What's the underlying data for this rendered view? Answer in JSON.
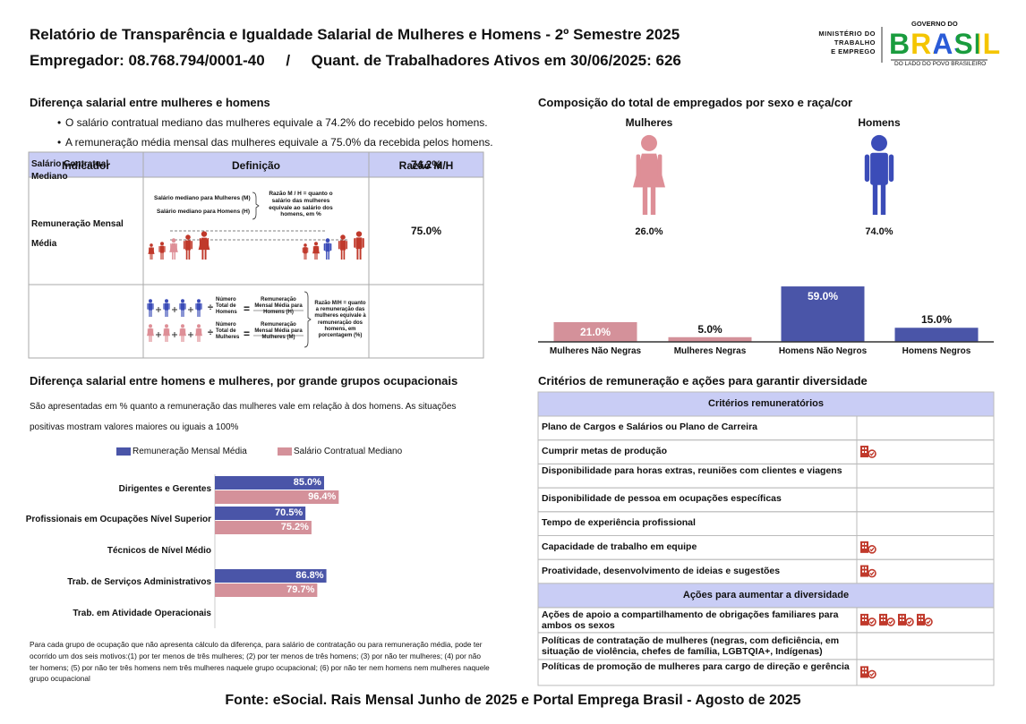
{
  "header": {
    "title": "Relatório de Transparência e Igualdade Salarial de Mulheres e Homens - 2º Semestre 2025",
    "subtitle": "Empregador: 08.768.794/0001-40     /     Quant. de Trabalhadores Ativos em 30/06/2025: 626"
  },
  "logos": {
    "ministry": [
      "MINISTÉRIO DO",
      "TRABALHO",
      "E EMPREGO"
    ],
    "government": {
      "top": "GOVERNO DO",
      "name": "BRASIL",
      "slogan": "DO LADO DO POVO BRASILEIRO"
    }
  },
  "salary_gap": {
    "title": "Diferença salarial entre mulheres e homens",
    "bullets": [
      "O salário contratual mediano das mulheres equivale a 74.2% do recebido pelos homens.",
      "A remuneração média mensal das mulheres equivale a 75.0% da recebida pelos homens."
    ],
    "table": {
      "header": [
        "Indicador",
        "Definição",
        "Razão M/H"
      ],
      "symbols": {
        "divide": "÷",
        "equals": "=",
        "bullet": "•"
      },
      "rows": [
        {
          "indicator": "Salário Contratual Mediano",
          "ratio": "74.2%",
          "definition": [
            "Salário mediano para Mulheres (M)",
            "Salário mediano para Homens (H)",
            "Razão M / H = quanto o salário das mulheres equivale ao salário dos homens, em %"
          ]
        },
        {
          "indicator": "Remuneração Mensal Média",
          "ratio": "75.0%",
          "definition": [
            "Número Total de Homens",
            "Remuneração Mensal Média para Homens (H)",
            "Número Total de Mulheres",
            "Remuneração Mensal Média para Mulheres (M)",
            "Razão M/H = quanto a remuneração das mulheres equivale à remuneração dos homens, em porcentagem (%)"
          ]
        }
      ]
    }
  },
  "composition": {
    "title": "Composição do total de empregados por sexo e raça/cor",
    "people": [
      {
        "label": "Mulheres",
        "value": "26.0%",
        "color": "#de8f97"
      },
      {
        "label": "Homens",
        "value": "74.0%",
        "color": "#3b4cb8"
      }
    ],
    "chart": {
      "type": "bar",
      "categories": [
        "Mulheres Não Negras",
        "Mulheres Negras",
        "Homens Não Negros",
        "Homens Negros"
      ],
      "values": [
        21.0,
        5.0,
        59.0,
        15.0
      ],
      "value_labels": [
        "21.0%",
        "5.0%",
        "59.0%",
        "15.0%"
      ],
      "colors": [
        "#d4919a",
        "#d4919a",
        "#4a55a8",
        "#4a55a8"
      ]
    }
  },
  "occupations": {
    "title": "Diferença salarial entre homens e mulheres, por grande grupos ocupacionais",
    "description": "São apresentadas em % quanto a remuneração das mulheres vale em relação à dos homens. As situações positivas mostram valores maiores ou iguais a 100%",
    "chart": {
      "type": "bar",
      "orientation": "horizontal",
      "categories": [
        "Dirigentes e Gerentes",
        "Profissionais em Ocupações Nível Superior",
        "Técnicos de Nível Médio",
        "Trab. de Serviços Administrativos",
        "Trab. em Atividade Operacionais"
      ],
      "series": [
        {
          "name": "Remuneração Mensal Média",
          "color": "#4a55a8",
          "values": [
            85.0,
            70.5,
            null,
            86.8,
            null
          ],
          "value_labels": [
            "85.0%",
            "70.5%",
            null,
            "86.8%",
            null
          ]
        },
        {
          "name": "Salário Contratual Mediano",
          "color": "#d4919a",
          "values": [
            96.4,
            75.2,
            null,
            79.7,
            null
          ],
          "value_labels": [
            "96.4%",
            "75.2%",
            null,
            "79.7%",
            null
          ]
        }
      ]
    },
    "note": "Para cada grupo de ocupação que não apresenta cálculo da diferença, para salário de contratação ou para remuneração média, pode ter ocorrido um dos seis motivos:(1) por ter menos de três mulheres; (2) por ter menos de três homens; (3) por não ter mulheres; (4) por não ter homens; (5) por não ter três homens nem três mulheres naquele grupo ocupacional; (6) por não ter nem homens nem mulheres naquele grupo ocupacional"
  },
  "criteria": {
    "title": "Critérios de remuneração e ações para garantir diversidade",
    "sections": [
      {
        "header": "Critérios remuneratórios",
        "rows": [
          {
            "text": "Plano de Cargos e Salários ou Plano de Carreira",
            "icons": 0
          },
          {
            "text": "Cumprir metas de produção",
            "icons": 1
          },
          {
            "text": "Disponibilidade para horas extras, reuniões com clientes e viagens",
            "icons": 0
          },
          {
            "text": "Disponibilidade de pessoa em ocupações específicas",
            "icons": 0
          },
          {
            "text": "Tempo de experiência profissional",
            "icons": 0
          },
          {
            "text": "Capacidade de trabalho em equipe",
            "icons": 1
          },
          {
            "text": "Proatividade, desenvolvimento de ideias e sugestões",
            "icons": 1
          }
        ]
      },
      {
        "header": "Ações para aumentar a diversidade",
        "rows": [
          {
            "text": "Ações de apoio a compartilhamento de obrigações familiares para ambos os sexos",
            "icons": 4
          },
          {
            "text": "Políticas de contratação de mulheres (negras, com deficiência, em situação de violência, chefes de família, LGBTQIA+, Indígenas)",
            "icons": 0
          },
          {
            "text": "Políticas de promoção de mulheres para cargo de direção e gerência",
            "icons": 1
          }
        ]
      }
    ]
  },
  "footer": "Fonte: eSocial. Rais Mensal Junho de 2025 e Portal Emprega Brasil - Agosto de 2025"
}
